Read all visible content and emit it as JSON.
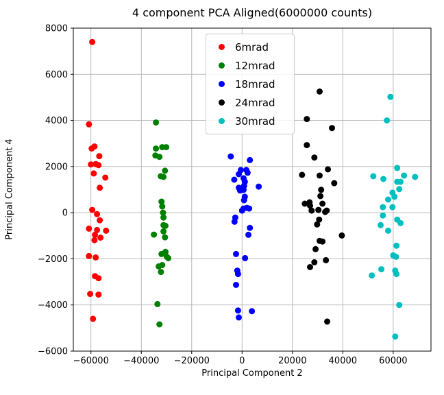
{
  "chart_data": {
    "type": "scatter",
    "title": "4 component PCA Aligned(6000000 counts)",
    "xlabel": "Principal Component 2",
    "ylabel": "Principal Component 4",
    "xlim": [
      -67000,
      75000
    ],
    "ylim": [
      -6000,
      8000
    ],
    "xticks": [
      -60000,
      -40000,
      -20000,
      0,
      20000,
      40000,
      60000
    ],
    "yticks": [
      -6000,
      -4000,
      -2000,
      0,
      2000,
      4000,
      6000,
      8000
    ],
    "grid": true,
    "grid_color": "#b0b0b0",
    "legend_position": "upper center",
    "series": [
      {
        "name": "6mrad",
        "color": "#ff0000",
        "points": [
          [
            -59500,
            7400
          ],
          [
            -60800,
            3830
          ],
          [
            -59700,
            2780
          ],
          [
            -58600,
            2870
          ],
          [
            -56700,
            2450
          ],
          [
            -60000,
            2090
          ],
          [
            -58100,
            2110
          ],
          [
            -57000,
            2060
          ],
          [
            -58900,
            1700
          ],
          [
            -54300,
            1520
          ],
          [
            -56500,
            1080
          ],
          [
            -59500,
            120
          ],
          [
            -57600,
            -60
          ],
          [
            -56500,
            -330
          ],
          [
            -60800,
            -690
          ],
          [
            -57600,
            -750
          ],
          [
            -54000,
            -780
          ],
          [
            -58400,
            -960
          ],
          [
            -56200,
            -1080
          ],
          [
            -58600,
            -1190
          ],
          [
            -60800,
            -1880
          ],
          [
            -58100,
            -1940
          ],
          [
            -58400,
            -2750
          ],
          [
            -57000,
            -2840
          ],
          [
            -60300,
            -3520
          ],
          [
            -57000,
            -3550
          ],
          [
            -59200,
            -4600
          ]
        ]
      },
      {
        "name": "12mrad",
        "color": "#008000",
        "points": [
          [
            -34200,
            3910
          ],
          [
            -34200,
            2780
          ],
          [
            -31700,
            2840
          ],
          [
            -30100,
            2840
          ],
          [
            -34400,
            2480
          ],
          [
            -32800,
            2420
          ],
          [
            -30600,
            1820
          ],
          [
            -31200,
            1550
          ],
          [
            -32300,
            1580
          ],
          [
            -32000,
            480
          ],
          [
            -31700,
            270
          ],
          [
            -31400,
            0
          ],
          [
            -31200,
            -210
          ],
          [
            -31200,
            -540
          ],
          [
            -30400,
            -570
          ],
          [
            -31200,
            -810
          ],
          [
            -35000,
            -950
          ],
          [
            -30600,
            -1070
          ],
          [
            -32000,
            -1790
          ],
          [
            -30400,
            -1700
          ],
          [
            -29900,
            -1910
          ],
          [
            -29300,
            -1970
          ],
          [
            -33100,
            -2330
          ],
          [
            -31700,
            -2270
          ],
          [
            -32200,
            -2570
          ],
          [
            -33600,
            -3960
          ],
          [
            -32800,
            -4840
          ]
        ]
      },
      {
        "name": "18mrad",
        "color": "#0000ff",
        "points": [
          [
            -4500,
            2440
          ],
          [
            3100,
            2280
          ],
          [
            -500,
            1850
          ],
          [
            -1300,
            1670
          ],
          [
            1700,
            1850
          ],
          [
            2200,
            1730
          ],
          [
            -3100,
            1430
          ],
          [
            600,
            1490
          ],
          [
            1100,
            1340
          ],
          [
            800,
            1160
          ],
          [
            6600,
            1130
          ],
          [
            -1300,
            1080
          ],
          [
            -800,
            960
          ],
          [
            600,
            990
          ],
          [
            1100,
            690
          ],
          [
            800,
            540
          ],
          [
            600,
            180
          ],
          [
            1900,
            210
          ],
          [
            2800,
            180
          ],
          [
            0,
            90
          ],
          [
            -2700,
            -210
          ],
          [
            -3000,
            -390
          ],
          [
            3100,
            -660
          ],
          [
            2500,
            -960
          ],
          [
            -2400,
            -1790
          ],
          [
            1200,
            -1970
          ],
          [
            -1900,
            -2510
          ],
          [
            -1600,
            -2660
          ],
          [
            -2400,
            -3130
          ],
          [
            -1600,
            -4240
          ],
          [
            3900,
            -4270
          ],
          [
            -1300,
            -4540
          ]
        ]
      },
      {
        "name": "24mrad",
        "color": "#000000",
        "points": [
          [
            30800,
            5250
          ],
          [
            25700,
            4060
          ],
          [
            35700,
            3670
          ],
          [
            25700,
            2930
          ],
          [
            28700,
            2390
          ],
          [
            34100,
            1880
          ],
          [
            23800,
            1640
          ],
          [
            30800,
            1610
          ],
          [
            36600,
            1280
          ],
          [
            31400,
            990
          ],
          [
            31100,
            720
          ],
          [
            24900,
            390
          ],
          [
            26800,
            450
          ],
          [
            27000,
            300
          ],
          [
            31900,
            390
          ],
          [
            27600,
            90
          ],
          [
            30300,
            120
          ],
          [
            33000,
            30
          ],
          [
            33600,
            90
          ],
          [
            30600,
            -300
          ],
          [
            29800,
            -510
          ],
          [
            39600,
            -990
          ],
          [
            30800,
            -1220
          ],
          [
            31900,
            -1250
          ],
          [
            29200,
            -1580
          ],
          [
            28700,
            -2150
          ],
          [
            27000,
            -2360
          ],
          [
            33300,
            -2060
          ],
          [
            33800,
            -4720
          ]
        ]
      },
      {
        "name": "30mrad",
        "color": "#00bfbf",
        "points": [
          [
            58900,
            5020
          ],
          [
            57500,
            4000
          ],
          [
            61600,
            1940
          ],
          [
            52100,
            1580
          ],
          [
            56100,
            1460
          ],
          [
            64300,
            1610
          ],
          [
            68700,
            1550
          ],
          [
            61600,
            1340
          ],
          [
            62900,
            1340
          ],
          [
            59700,
            870
          ],
          [
            62400,
            1020
          ],
          [
            60500,
            690
          ],
          [
            58000,
            570
          ],
          [
            55900,
            240
          ],
          [
            59700,
            240
          ],
          [
            55900,
            -120
          ],
          [
            61600,
            -300
          ],
          [
            62900,
            -450
          ],
          [
            55000,
            -540
          ],
          [
            58000,
            -780
          ],
          [
            61300,
            -1430
          ],
          [
            60000,
            -1850
          ],
          [
            61100,
            -1910
          ],
          [
            55300,
            -2450
          ],
          [
            51500,
            -2720
          ],
          [
            60800,
            -2510
          ],
          [
            61300,
            -2660
          ],
          [
            62400,
            -4000
          ],
          [
            60800,
            -5370
          ]
        ]
      }
    ]
  }
}
